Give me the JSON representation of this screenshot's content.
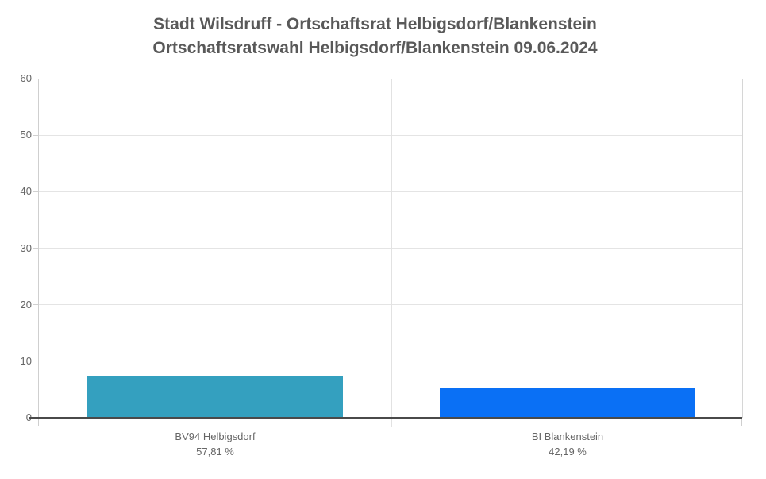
{
  "title": {
    "line1": "Stadt Wilsdruff - Ortschaftsrat Helbigsdorf/Blankenstein",
    "line2": "Ortschaftsratswahl Helbigsdorf/Blankenstein 09.06.2024"
  },
  "colors": {
    "title_text": "#595959",
    "axis_text": "#666666",
    "gridline": "#e4e4e4",
    "baseline": "#4a4a4a",
    "bar_bv94_helbigsdorf": "#34a0bf",
    "bar_bi_blankenstein": "#0a70f5"
  },
  "chart_data": {
    "type": "bar",
    "title": "Stadt Wilsdruff - Ortschaftsrat Helbigsdorf/Blankenstein",
    "subtitle": "Ortschaftsratswahl Helbigsdorf/Blankenstein 09.06.2024",
    "categories": [
      "BV94 Helbigsdorf",
      "BI Blankenstein"
    ],
    "values": [
      7.4,
      5.4
    ],
    "percent_labels": [
      "57,81 %",
      "42,19 %"
    ],
    "bar_colors": [
      "#34a0bf",
      "#0a70f5"
    ],
    "xlabel": "",
    "ylabel": "",
    "ylim": [
      0,
      60
    ],
    "yticks": [
      0,
      10,
      20,
      30,
      40,
      50,
      60
    ],
    "grid": "on",
    "legend": "none"
  }
}
